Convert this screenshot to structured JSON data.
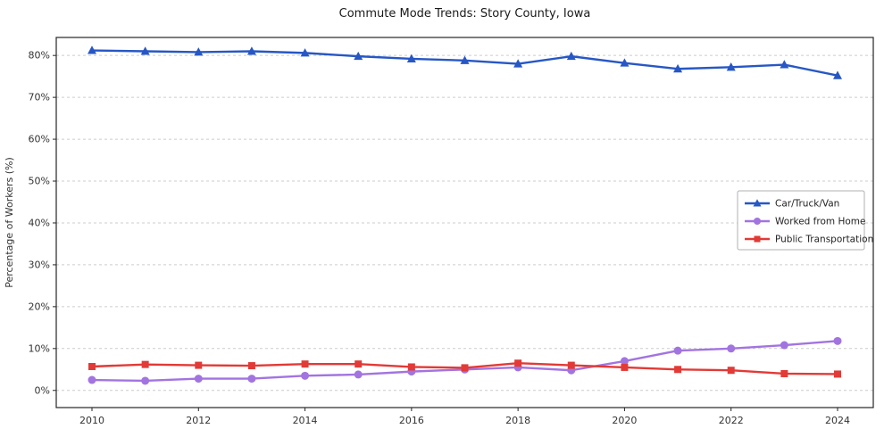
{
  "title": "Commute Mode Trends: Story County, Iowa",
  "chart_data": {
    "type": "line",
    "title": "Commute Mode Trends: Story County, Iowa",
    "xlabel": "",
    "ylabel": "Percentage of Workers (%)",
    "x": [
      2010,
      2011,
      2012,
      2013,
      2014,
      2015,
      2016,
      2017,
      2018,
      2019,
      2020,
      2021,
      2022,
      2023,
      2024
    ],
    "x_ticks": [
      2010,
      2012,
      2014,
      2016,
      2018,
      2020,
      2022,
      2024
    ],
    "y_ticks": [
      0,
      10,
      20,
      30,
      40,
      50,
      60,
      70,
      80
    ],
    "y_tick_suffix": "%",
    "ylim": [
      -4.1,
      84.3
    ],
    "grid": "horizontal-dashed",
    "legend_position": "middle-right",
    "series": [
      {
        "name": "Car/Truck/Van",
        "color": "#2757c5",
        "marker": "triangle",
        "values": [
          81.2,
          81.0,
          80.8,
          81.0,
          80.6,
          79.8,
          79.2,
          78.8,
          78.0,
          79.8,
          78.2,
          76.8,
          77.2,
          77.8,
          75.2
        ]
      },
      {
        "name": "Worked from Home",
        "color": "#a274e0",
        "marker": "circle",
        "values": [
          2.5,
          2.3,
          2.8,
          2.8,
          3.5,
          3.8,
          4.5,
          5.0,
          5.5,
          4.8,
          7.0,
          9.5,
          10.0,
          10.8,
          11.8
        ]
      },
      {
        "name": "Public Transportation",
        "color": "#e23a36",
        "marker": "square",
        "values": [
          5.7,
          6.2,
          6.0,
          5.9,
          6.3,
          6.3,
          5.6,
          5.4,
          6.5,
          6.0,
          5.5,
          5.0,
          4.8,
          4.0,
          3.9
        ]
      }
    ]
  }
}
